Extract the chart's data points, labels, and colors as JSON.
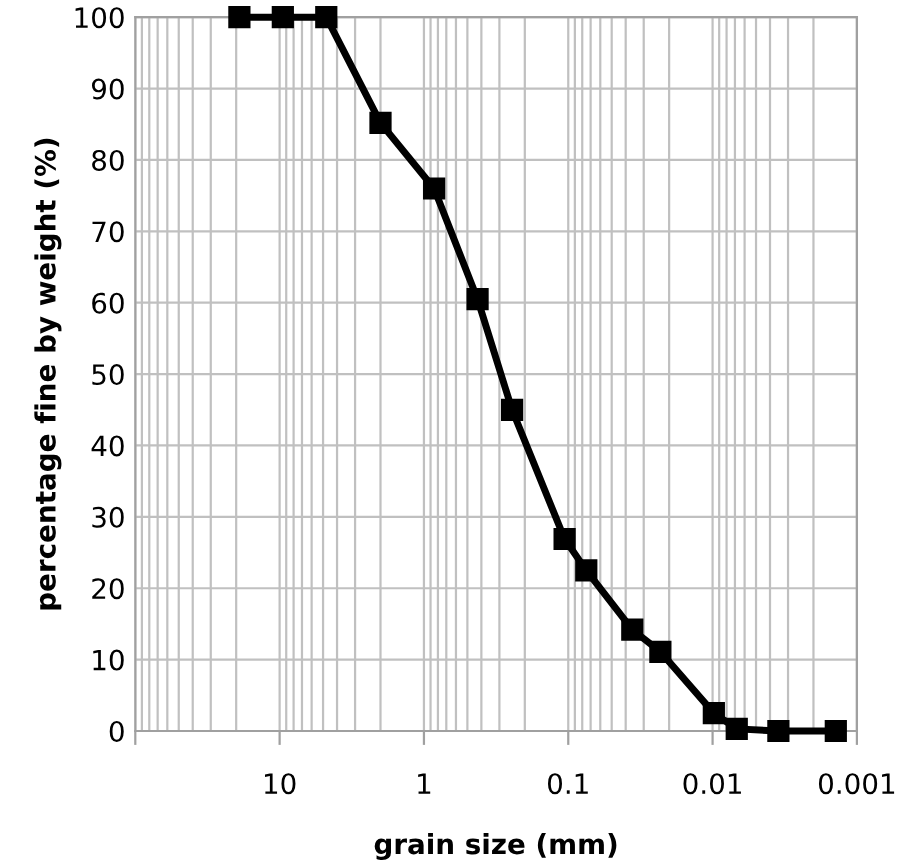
{
  "chart_data": {
    "type": "line",
    "xlabel": "grain size (mm)",
    "ylabel": "percentage fine by weight (%)",
    "x": [
      19,
      9.5,
      4.75,
      2.0,
      0.85,
      0.425,
      0.245,
      0.106,
      0.075,
      0.036,
      0.023,
      0.0098,
      0.0068,
      0.0035,
      0.0014
    ],
    "series": [
      {
        "color": "#000000",
        "values": [
          100,
          100,
          100,
          85.2,
          76,
          60.5,
          45,
          26.9,
          22.5,
          14.2,
          11.1,
          2.5,
          0.3,
          0,
          0
        ]
      }
    ],
    "log": "x",
    "xlim": [
      100,
      0.001
    ],
    "xticks": [
      {
        "value": 100,
        "label": null
      },
      {
        "value": 10,
        "label": "10"
      },
      {
        "value": 1,
        "label": "1"
      },
      {
        "value": 0.1,
        "label": "0.1"
      },
      {
        "value": 0.01,
        "label": "0.01"
      },
      {
        "value": 0.001,
        "label": "0.001"
      }
    ],
    "ylim": [
      0,
      100
    ],
    "yticks": [
      0,
      10,
      20,
      30,
      40,
      50,
      60,
      70,
      80,
      90,
      100
    ],
    "grid": true,
    "marker": "square",
    "line_style": "solid",
    "legend": false
  }
}
